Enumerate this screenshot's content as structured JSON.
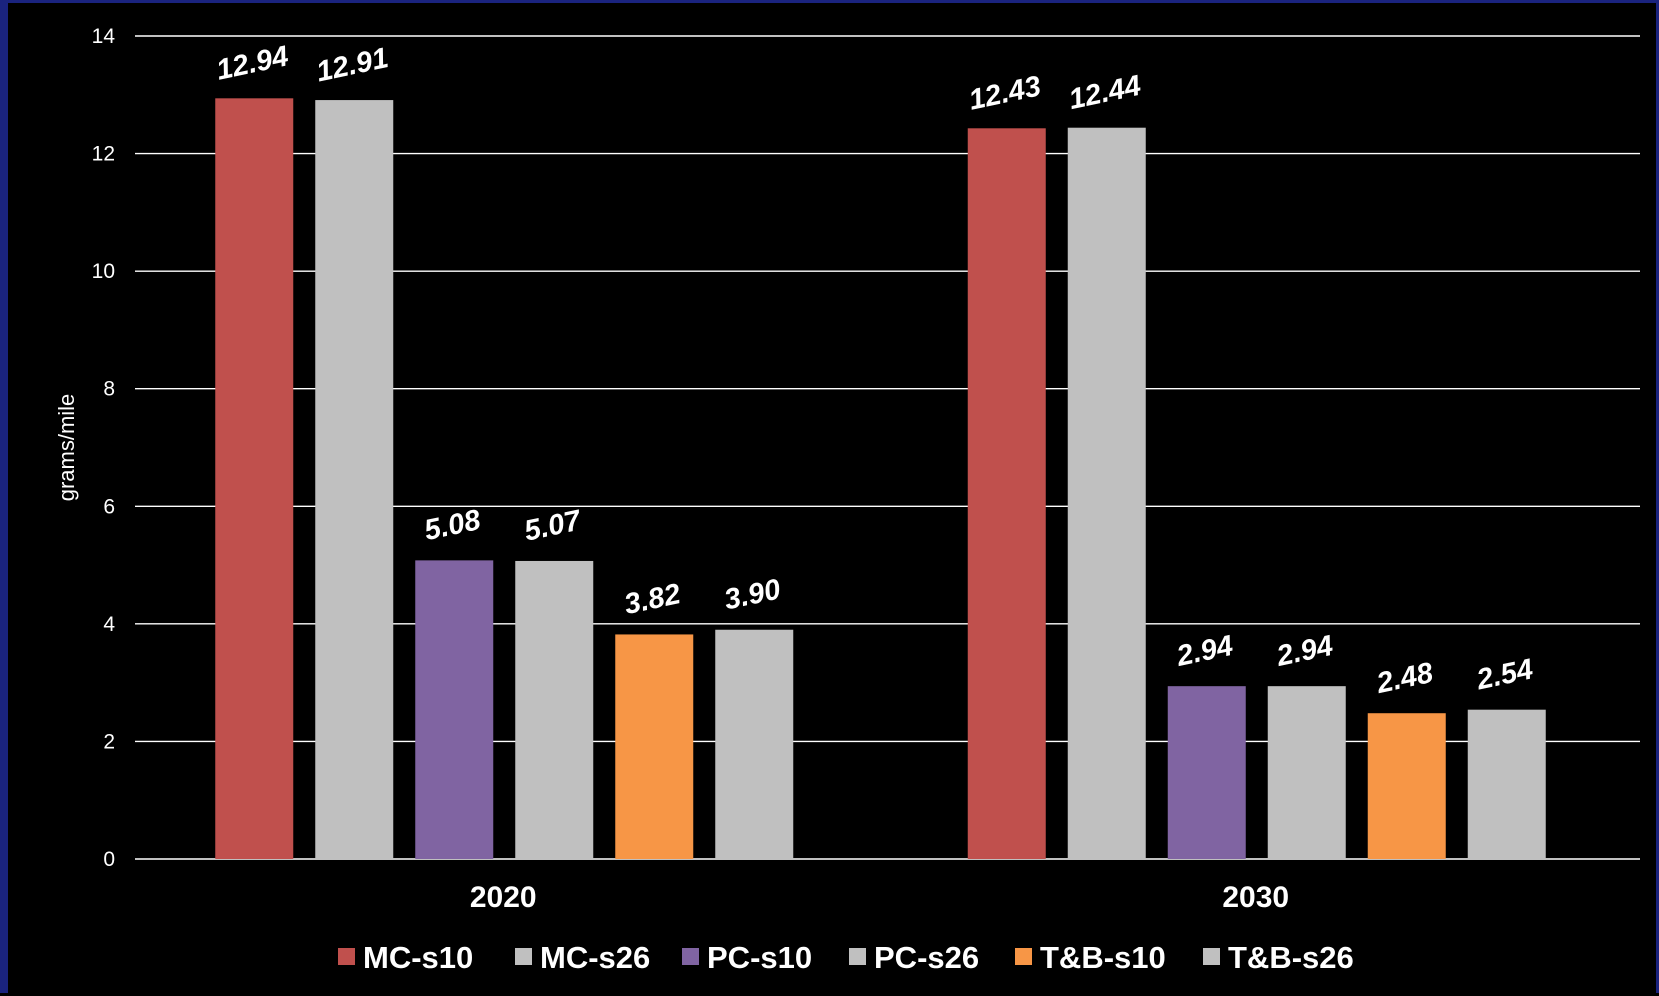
{
  "chart_data": {
    "type": "bar",
    "categories": [
      "2020",
      "2030"
    ],
    "series": [
      {
        "name": "MC-s10",
        "color": "#c0504d",
        "values": [
          12.94,
          12.43
        ],
        "labels": [
          "12.94",
          "12.43"
        ]
      },
      {
        "name": "MC-s26",
        "color": "#c0c0c0",
        "values": [
          12.91,
          12.44
        ],
        "labels": [
          "12.91",
          "12.44"
        ]
      },
      {
        "name": "PC-s10",
        "color": "#8064a2",
        "values": [
          5.08,
          2.94
        ],
        "labels": [
          "5.08",
          "2.94"
        ]
      },
      {
        "name": "PC-s26",
        "color": "#c0c0c0",
        "values": [
          5.07,
          2.94
        ],
        "labels": [
          "5.07",
          "2.94"
        ]
      },
      {
        "name": "T&B-s10",
        "color": "#f79646",
        "values": [
          3.82,
          2.48
        ],
        "labels": [
          "3.82",
          "2.48"
        ]
      },
      {
        "name": "T&B-s26",
        "color": "#c0c0c0",
        "values": [
          3.9,
          2.54
        ],
        "labels": [
          "3.90",
          "2.54"
        ]
      }
    ],
    "ylabel": "grams/mile",
    "xlabel": "",
    "ylim": [
      0,
      14
    ],
    "yticks": [
      "0",
      "2",
      "4",
      "6",
      "8",
      "10",
      "12",
      "14"
    ],
    "grid": true,
    "legend_position": "bottom"
  }
}
